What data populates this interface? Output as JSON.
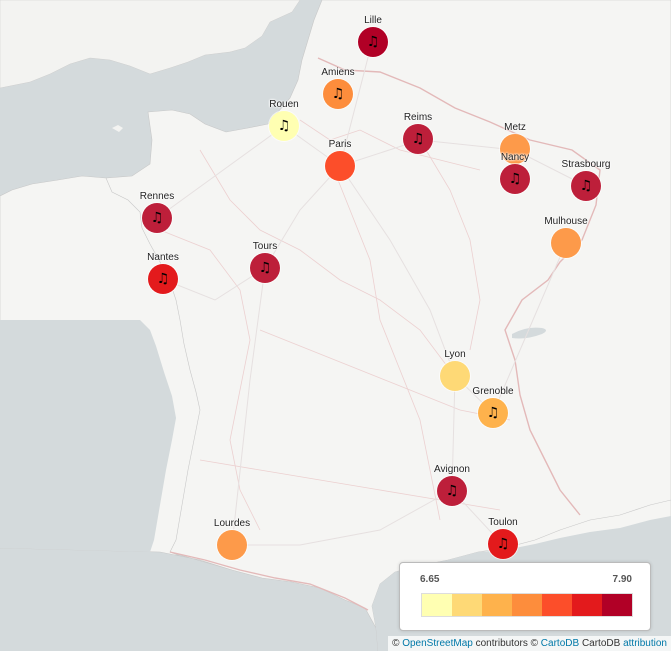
{
  "map": {
    "colors": {
      "water": "#d4dadc",
      "land": "#f5f5f3",
      "border": "#e3b9b9",
      "road": "#e9e3e3"
    },
    "cities": [
      {
        "name": "Lille",
        "color": "#b10026",
        "icon": "music-note-icon",
        "symbol": "♫",
        "show_icon": true
      },
      {
        "name": "Amiens",
        "color": "#fd8d3c",
        "icon": "music-note-icon",
        "symbol": "♫",
        "show_icon": true
      },
      {
        "name": "Rouen",
        "color": "#ffffb2",
        "icon": "music-note-icon",
        "symbol": "♫",
        "show_icon": true
      },
      {
        "name": "Reims",
        "color": "#bd1f3a",
        "icon": "music-note-icon",
        "symbol": "♫",
        "show_icon": true
      },
      {
        "name": "Paris",
        "color": "#fc4e2a",
        "icon": "music-note-icon",
        "symbol": "",
        "show_icon": false
      },
      {
        "name": "Metz",
        "color": "#fd9a4a",
        "icon": "music-note-icon",
        "symbol": "",
        "show_icon": false
      },
      {
        "name": "Nancy",
        "color": "#bd1f3a",
        "icon": "music-note-icon",
        "symbol": "♫",
        "show_icon": true
      },
      {
        "name": "Strasbourg",
        "color": "#bd1f3a",
        "icon": "music-note-icon",
        "symbol": "♫",
        "show_icon": true
      },
      {
        "name": "Rennes",
        "color": "#bd1f3a",
        "icon": "music-note-icon",
        "symbol": "♫",
        "show_icon": true
      },
      {
        "name": "Mulhouse",
        "color": "#fd9a4a",
        "icon": "music-note-icon",
        "symbol": "",
        "show_icon": false
      },
      {
        "name": "Tours",
        "color": "#bd1f3a",
        "icon": "music-note-icon",
        "symbol": "♫",
        "show_icon": true
      },
      {
        "name": "Nantes",
        "color": "#e31a1c",
        "icon": "music-note-icon",
        "symbol": "♫",
        "show_icon": true
      },
      {
        "name": "Lyon",
        "color": "#fed976",
        "icon": "music-note-icon",
        "symbol": "",
        "show_icon": false
      },
      {
        "name": "Grenoble",
        "color": "#feb24c",
        "icon": "music-note-icon",
        "symbol": "♫",
        "show_icon": true
      },
      {
        "name": "Avignon",
        "color": "#bd1f3a",
        "icon": "music-note-icon",
        "symbol": "♫",
        "show_icon": true
      },
      {
        "name": "Lourdes",
        "color": "#fd9a4a",
        "icon": "music-note-icon",
        "symbol": "",
        "show_icon": false
      },
      {
        "name": "Toulon",
        "color": "#e31a1c",
        "icon": "music-note-icon",
        "symbol": "♫",
        "show_icon": true
      }
    ]
  },
  "legend": {
    "min": "6.65",
    "max": "7.90",
    "colors": [
      "#ffffb2",
      "#fed976",
      "#feb24c",
      "#fd8d3c",
      "#fc4e2a",
      "#e31a1c",
      "#b10026"
    ]
  },
  "attribution": {
    "copy1": "©",
    "osm_link": "OpenStreetMap",
    "contributors": "contributors",
    "copy2": "©",
    "carto_link": "CartoDB",
    "carto_text": "CartoDB",
    "attribution_link": "attribution"
  }
}
